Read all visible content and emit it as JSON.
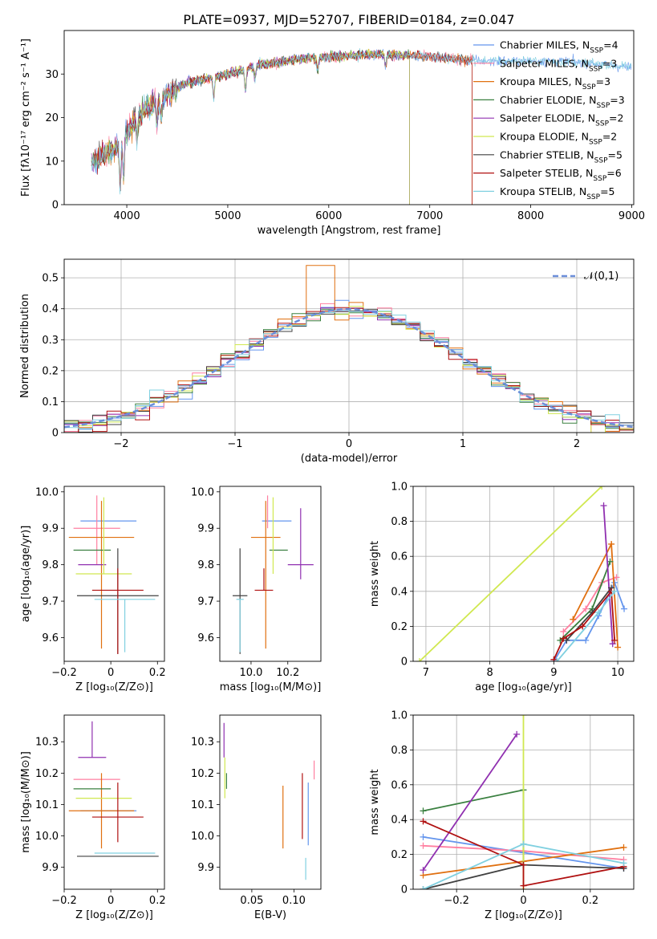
{
  "title": "PLATE=0937, MJD=52707, FIBERID=0184, z=0.047",
  "colors": [
    "#6495ed",
    "#ff7fa0",
    "#e07010",
    "#3a8040",
    "#9030b0",
    "#d0e850",
    "#404040",
    "#b01010",
    "#80d0e0"
  ],
  "chart_data": [
    {
      "id": "spectrum",
      "type": "line",
      "xlabel": "wavelength [Angstrom, rest frame]",
      "ylabel": "Flux [fλ10⁻¹⁷ erg cm⁻² s⁻¹ A⁻¹]",
      "xlim": [
        3380,
        9020
      ],
      "ylim": [
        0,
        40
      ],
      "xticks": [
        4000,
        5000,
        6000,
        7000,
        8000,
        9000
      ],
      "yticks": [
        0,
        10,
        20,
        30
      ],
      "legend_position": "right",
      "series": [
        {
          "name": "Chabrier MILES, N",
          "sub": "SSP",
          "tail": "=4",
          "end": 9000
        },
        {
          "name": "Salpeter MILES, N",
          "sub": "SSP",
          "tail": "=3",
          "end": 7420
        },
        {
          "name": "Kroupa MILES, N",
          "sub": "SSP",
          "tail": "=3",
          "end": 7420
        },
        {
          "name": "Chabrier ELODIE, N",
          "sub": "SSP",
          "tail": "=3",
          "end": 6800
        },
        {
          "name": "Salpeter ELODIE, N",
          "sub": "SSP",
          "tail": "=2",
          "end": 6800
        },
        {
          "name": "Kroupa ELODIE, N",
          "sub": "SSP",
          "tail": "=2",
          "end": 6800
        },
        {
          "name": "Chabrier STELIB, N",
          "sub": "SSP",
          "tail": "=5",
          "end": 7420
        },
        {
          "name": "Salpeter STELIB, N",
          "sub": "SSP",
          "tail": "=6",
          "end": 7420
        },
        {
          "name": "Kroupa STELIB, N",
          "sub": "SSP",
          "tail": "=5",
          "end": 9000
        }
      ],
      "continuum": [
        [
          3650,
          10
        ],
        [
          3900,
          13
        ],
        [
          4100,
          20
        ],
        [
          4300,
          24
        ],
        [
          4600,
          28
        ],
        [
          5000,
          30
        ],
        [
          5300,
          32
        ],
        [
          5700,
          33.5
        ],
        [
          6000,
          34
        ],
        [
          6500,
          34.5
        ],
        [
          7000,
          34
        ],
        [
          7420,
          33
        ],
        [
          7800,
          33
        ],
        [
          8200,
          33
        ],
        [
          8600,
          32.5
        ],
        [
          9000,
          31.5
        ]
      ]
    },
    {
      "id": "residuals",
      "type": "histogram",
      "xlabel": "(data-model)/error",
      "ylabel": "Normed distribution",
      "xlim": [
        -2.5,
        2.5
      ],
      "ylim": [
        0,
        0.56
      ],
      "xticks": [
        -2,
        -1,
        0,
        1,
        2
      ],
      "yticks": [
        0.0,
        0.1,
        0.2,
        0.3,
        0.4,
        0.5
      ],
      "grid": true,
      "legend": "𝒩(0,1)",
      "legend_position": "top-right",
      "bin_width": 0.125
    },
    {
      "id": "age-vs-Z",
      "type": "scatter",
      "xlabel": "Z [log₁₀(Z/Z⊙)]",
      "ylabel": "age  [log₁₀(age/yr)]",
      "xlim": [
        -0.2,
        0.23
      ],
      "ylim": [
        9.535,
        10.015
      ],
      "xticks": [
        -0.2,
        0.0,
        0.2
      ],
      "yticks": [
        9.6,
        9.7,
        9.8,
        9.9,
        10.0
      ],
      "points": [
        {
          "x": -0.01,
          "y": 9.92,
          "xerr": 0.12,
          "yerr_lo": 0.0,
          "yerr_hi": 0.0
        },
        {
          "x": -0.06,
          "y": 9.9,
          "xerr": 0.1,
          "yerr_lo": 0.1,
          "yerr_hi": 0.09
        },
        {
          "x": -0.04,
          "y": 9.875,
          "xerr": 0.14,
          "yerr_lo": 0.305,
          "yerr_hi": 0.1
        },
        {
          "x": -0.08,
          "y": 9.84,
          "xerr": 0.08,
          "yerr_lo": 0.0,
          "yerr_hi": 0.0
        },
        {
          "x": -0.08,
          "y": 9.8,
          "xerr": 0.06,
          "yerr_lo": 0.0,
          "yerr_hi": 0.0
        },
        {
          "x": -0.03,
          "y": 9.775,
          "xerr": 0.12,
          "yerr_lo": 0.0,
          "yerr_hi": 0.21
        },
        {
          "x": 0.03,
          "y": 9.715,
          "xerr": 0.175,
          "yerr_lo": 0.16,
          "yerr_hi": 0.13
        },
        {
          "x": 0.03,
          "y": 9.73,
          "xerr": 0.11,
          "yerr_lo": 0.175,
          "yerr_hi": 0.06
        },
        {
          "x": 0.06,
          "y": 9.705,
          "xerr": 0.13,
          "yerr_lo": 0.145,
          "yerr_hi": 0.0
        }
      ]
    },
    {
      "id": "age-vs-mass",
      "type": "scatter",
      "xlabel": "mass [log₁₀(M/M⊙)]",
      "ylabel": "",
      "xlim": [
        9.83,
        10.38
      ],
      "ylim": [
        9.535,
        10.015
      ],
      "xticks": [
        10.0,
        10.2
      ],
      "yticks": [
        9.6,
        9.7,
        9.8,
        9.9,
        10.0
      ],
      "points": [
        {
          "x": 10.14,
          "y": 9.92,
          "xerr": 0.08,
          "yerr_lo": 0.0,
          "yerr_hi": 0.0
        },
        {
          "x": 10.09,
          "y": 9.9,
          "xerr": 0.0,
          "yerr_lo": 0.0,
          "yerr_hi": 0.09
        },
        {
          "x": 10.08,
          "y": 9.875,
          "xerr": 0.08,
          "yerr_lo": 0.305,
          "yerr_hi": 0.1
        },
        {
          "x": 10.15,
          "y": 9.84,
          "xerr": 0.05,
          "yerr_lo": 0.0,
          "yerr_hi": 0.0
        },
        {
          "x": 10.27,
          "y": 9.8,
          "xerr": 0.07,
          "yerr_lo": 0.04,
          "yerr_hi": 0.155
        },
        {
          "x": 10.12,
          "y": 9.775,
          "xerr": 0.0,
          "yerr_lo": 0.0,
          "yerr_hi": 0.21
        },
        {
          "x": 9.94,
          "y": 9.715,
          "xerr": 0.04,
          "yerr_lo": 0.16,
          "yerr_hi": 0.13
        },
        {
          "x": 10.07,
          "y": 9.73,
          "xerr": 0.05,
          "yerr_lo": 0.0,
          "yerr_hi": 0.06
        },
        {
          "x": 9.94,
          "y": 9.705,
          "xerr": 0.02,
          "yerr_lo": 0.145,
          "yerr_hi": 0.0
        }
      ]
    },
    {
      "id": "weight-vs-age",
      "type": "line",
      "xlabel": "age  [log₁₀(age/yr)]",
      "ylabel": "mass weight",
      "xlim": [
        6.8,
        10.25
      ],
      "ylim": [
        0,
        1
      ],
      "xticks": [
        7,
        8,
        9,
        10
      ],
      "yticks": [
        0.0,
        0.2,
        0.4,
        0.6,
        0.8,
        1.0
      ],
      "grid": true,
      "series": [
        {
          "points": [
            [
              9.0,
              0.0
            ],
            [
              9.2,
              0.12
            ],
            [
              9.5,
              0.12
            ],
            [
              9.7,
              0.26
            ],
            [
              9.95,
              0.45
            ],
            [
              10.1,
              0.3
            ]
          ]
        },
        {
          "points": [
            [
              9.15,
              0.17
            ],
            [
              9.5,
              0.3
            ],
            [
              9.75,
              0.45
            ],
            [
              9.98,
              0.48
            ]
          ]
        },
        {
          "points": [
            [
              9.3,
              0.24
            ],
            [
              9.9,
              0.67
            ],
            [
              10.0,
              0.08
            ]
          ]
        },
        {
          "points": [
            [
              9.1,
              0.12
            ],
            [
              9.6,
              0.3
            ],
            [
              9.88,
              0.57
            ]
          ]
        },
        {
          "points": [
            [
              9.78,
              0.89
            ],
            [
              9.92,
              0.1
            ]
          ]
        },
        {
          "points": [
            [
              6.9,
              0.0
            ],
            [
              9.75,
              1.0
            ]
          ]
        },
        {
          "points": [
            [
              9.2,
              0.12
            ],
            [
              9.6,
              0.28
            ],
            [
              9.9,
              0.42
            ]
          ]
        },
        {
          "points": [
            [
              9.0,
              0.01
            ],
            [
              9.15,
              0.13
            ],
            [
              9.45,
              0.2
            ],
            [
              9.9,
              0.4
            ],
            [
              9.95,
              0.12
            ]
          ]
        },
        {
          "points": [
            [
              9.05,
              0.0
            ],
            [
              9.7,
              0.28
            ],
            [
              9.95,
              0.4
            ]
          ]
        }
      ]
    },
    {
      "id": "mass-vs-Z",
      "type": "scatter",
      "xlabel": "Z [log₁₀(Z/Z⊙)]",
      "ylabel": "mass [log₁₀(M/M⊙)]",
      "xlim": [
        -0.2,
        0.23
      ],
      "ylim": [
        9.83,
        10.385
      ],
      "xticks": [
        -0.2,
        0.0,
        0.2
      ],
      "yticks": [
        9.9,
        10.0,
        10.1,
        10.2,
        10.3
      ],
      "points": [
        {
          "x": -0.01,
          "y": 10.08,
          "xerr": 0.12,
          "yerr_lo": 0.0,
          "yerr_hi": 0.0
        },
        {
          "x": -0.06,
          "y": 10.18,
          "xerr": 0.1,
          "yerr_lo": 0.0,
          "yerr_hi": 0.0
        },
        {
          "x": -0.04,
          "y": 10.08,
          "xerr": 0.14,
          "yerr_lo": 0.12,
          "yerr_hi": 0.12
        },
        {
          "x": -0.08,
          "y": 10.15,
          "xerr": 0.08,
          "yerr_lo": 0.0,
          "yerr_hi": 0.0
        },
        {
          "x": -0.08,
          "y": 10.25,
          "xerr": 0.06,
          "yerr_lo": 0.0,
          "yerr_hi": 0.115
        },
        {
          "x": -0.03,
          "y": 10.12,
          "xerr": 0.12,
          "yerr_lo": 0.0,
          "yerr_hi": 0.0
        },
        {
          "x": 0.03,
          "y": 9.935,
          "xerr": 0.175,
          "yerr_lo": 0.0,
          "yerr_hi": 0.0
        },
        {
          "x": 0.03,
          "y": 10.06,
          "xerr": 0.11,
          "yerr_lo": 0.08,
          "yerr_hi": 0.11
        },
        {
          "x": 0.06,
          "y": 9.945,
          "xerr": 0.13,
          "yerr_lo": 0.0,
          "yerr_hi": 0.0
        }
      ]
    },
    {
      "id": "mass-vs-ebv",
      "type": "scatter",
      "xlabel": "E(B-V)",
      "ylabel": "",
      "xlim": [
        0.012,
        0.132
      ],
      "ylim": [
        9.83,
        10.385
      ],
      "xticks": [
        0.05,
        0.1
      ],
      "yticks": [
        9.9,
        10.0,
        10.1,
        10.2,
        10.3
      ],
      "points": [
        {
          "x": 0.117,
          "y": 10.03,
          "xerr": 0.0,
          "yerr_lo": 0.06,
          "yerr_hi": 0.14
        },
        {
          "x": 0.124,
          "y": 10.18,
          "xerr": 0.0,
          "yerr_lo": 0.0,
          "yerr_hi": 0.06
        },
        {
          "x": 0.087,
          "y": 10.06,
          "xerr": 0.0,
          "yerr_lo": 0.1,
          "yerr_hi": 0.1
        },
        {
          "x": 0.02,
          "y": 10.15,
          "xerr": 0.0,
          "yerr_lo": 0.0,
          "yerr_hi": 0.05
        },
        {
          "x": 0.017,
          "y": 10.25,
          "xerr": 0.0,
          "yerr_lo": 0.0,
          "yerr_hi": 0.11
        },
        {
          "x": 0.018,
          "y": 10.12,
          "xerr": 0.0,
          "yerr_lo": 0.0,
          "yerr_hi": 0.13
        },
        {
          "x": 0.116,
          "y": 9.935,
          "xerr": 0.0,
          "yerr_lo": 0.0,
          "yerr_hi": 0.0
        },
        {
          "x": 0.11,
          "y": 10.08,
          "xerr": 0.0,
          "yerr_lo": 0.09,
          "yerr_hi": 0.12
        },
        {
          "x": 0.114,
          "y": 9.93,
          "xerr": 0.0,
          "yerr_lo": 0.07,
          "yerr_hi": 0.0
        }
      ]
    },
    {
      "id": "weight-vs-Z",
      "type": "line",
      "xlabel": "Z [log₁₀(Z/Z⊙)]",
      "ylabel": "mass weight",
      "xlim": [
        -0.33,
        0.33
      ],
      "ylim": [
        0,
        1
      ],
      "xticks": [
        -0.2,
        0.0,
        0.2
      ],
      "yticks": [
        0.0,
        0.2,
        0.4,
        0.6,
        0.8,
        1.0
      ],
      "grid": true,
      "series": [
        {
          "points": [
            [
              -0.3,
              0.3
            ],
            [
              0.0,
              0.21
            ],
            [
              0.3,
              0.12
            ]
          ]
        },
        {
          "points": [
            [
              -0.3,
              0.25
            ],
            [
              0.0,
              0.22
            ],
            [
              0.3,
              0.17
            ]
          ]
        },
        {
          "points": [
            [
              -0.3,
              0.08
            ],
            [
              0.0,
              0.16
            ],
            [
              0.3,
              0.24
            ]
          ]
        },
        {
          "points": [
            [
              -0.3,
              0.45
            ],
            [
              0.0,
              0.57
            ],
            [
              0.0,
              0.14
            ]
          ]
        },
        {
          "points": [
            [
              -0.3,
              0.11
            ],
            [
              -0.02,
              0.89
            ]
          ]
        },
        {
          "points": [
            [
              0.0,
              1.0
            ],
            [
              0.0,
              0.0
            ]
          ]
        },
        {
          "points": [
            [
              -0.3,
              0.0
            ],
            [
              0.0,
              0.14
            ],
            [
              0.3,
              0.12
            ]
          ]
        },
        {
          "points": [
            [
              -0.3,
              0.39
            ],
            [
              0.0,
              0.14
            ],
            [
              0.0,
              0.02
            ],
            [
              0.3,
              0.13
            ]
          ]
        },
        {
          "points": [
            [
              -0.3,
              0.0
            ],
            [
              0.0,
              0.26
            ],
            [
              0.3,
              0.15
            ]
          ]
        }
      ]
    }
  ]
}
